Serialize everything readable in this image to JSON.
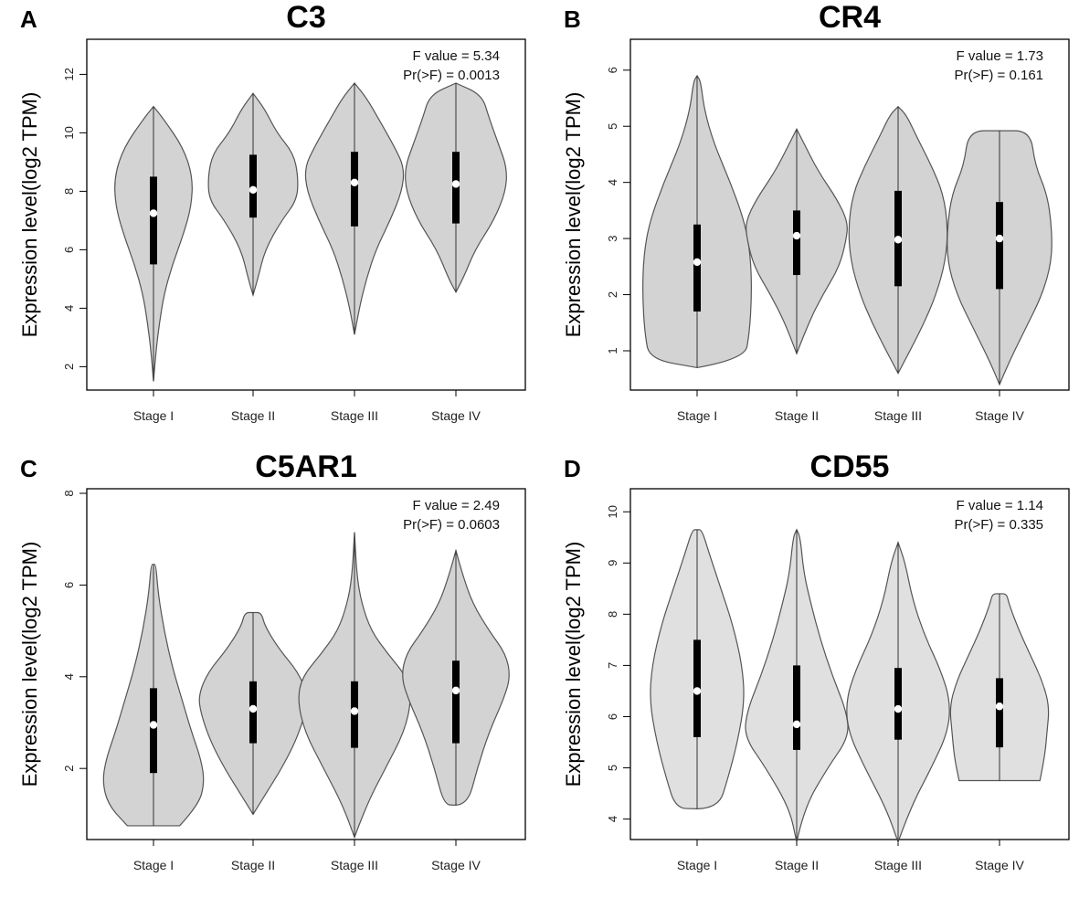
{
  "chart_data": [
    {
      "panel_label": "A",
      "title": "C3",
      "type": "violin",
      "ylabel": "Expression level(log2 TPM)",
      "xlabel": "",
      "ylim": [
        1.2,
        13.2
      ],
      "yticks": [
        2,
        4,
        6,
        8,
        10,
        12
      ],
      "f_value_text": "F value = 5.34",
      "p_value_text": "Pr(>F) = 0.0013",
      "fill": "#d3d3d3",
      "categories": [
        "Stage I",
        "Stage II",
        "Stage III",
        "Stage IV"
      ],
      "violins": [
        {
          "name": "Stage I",
          "min": 1.5,
          "q1": 5.5,
          "median": 7.25,
          "q3": 8.5,
          "max": 10.9,
          "profile": [
            [
              1.5,
              0
            ],
            [
              2.5,
              2
            ],
            [
              3.5,
              5
            ],
            [
              4.5,
              9
            ],
            [
              5.5,
              16
            ],
            [
              6.5,
              25
            ],
            [
              7.5,
              32
            ],
            [
              8.5,
              33
            ],
            [
              9.5,
              25
            ],
            [
              10.5,
              8
            ],
            [
              10.9,
              0
            ]
          ]
        },
        {
          "name": "Stage II",
          "min": 4.45,
          "q1": 7.1,
          "median": 8.05,
          "q3": 9.25,
          "max": 11.35,
          "profile": [
            [
              4.45,
              0
            ],
            [
              5,
              4
            ],
            [
              6,
              10
            ],
            [
              7,
              24
            ],
            [
              7.7,
              37
            ],
            [
              8.5,
              38
            ],
            [
              9.3,
              34
            ],
            [
              10,
              20
            ],
            [
              10.8,
              10
            ],
            [
              11.35,
              0
            ]
          ]
        },
        {
          "name": "Stage III",
          "min": 3.1,
          "q1": 6.8,
          "median": 8.3,
          "q3": 9.35,
          "max": 11.7,
          "profile": [
            [
              3.1,
              0
            ],
            [
              4,
              4
            ],
            [
              5,
              10
            ],
            [
              6,
              18
            ],
            [
              7,
              30
            ],
            [
              8,
              40
            ],
            [
              8.8,
              42
            ],
            [
              9.5,
              34
            ],
            [
              10.5,
              20
            ],
            [
              11.2,
              10
            ],
            [
              11.7,
              0
            ]
          ]
        },
        {
          "name": "Stage IV",
          "min": 4.55,
          "q1": 6.9,
          "median": 8.25,
          "q3": 9.35,
          "max": 11.7,
          "profile": [
            [
              4.55,
              0
            ],
            [
              5,
              6
            ],
            [
              6,
              16
            ],
            [
              7,
              32
            ],
            [
              8,
              42
            ],
            [
              8.8,
              43
            ],
            [
              9.6,
              36
            ],
            [
              10.5,
              28
            ],
            [
              11.3,
              22
            ],
            [
              11.7,
              0
            ]
          ]
        }
      ]
    },
    {
      "panel_label": "B",
      "title": "CR4",
      "type": "violin",
      "ylabel": "Expression level(log2 TPM)",
      "xlabel": "",
      "ylim": [
        0.3,
        6.55
      ],
      "yticks": [
        1,
        2,
        3,
        4,
        5,
        6
      ],
      "f_value_text": "F value = 1.73",
      "p_value_text": "Pr(>F) = 0.161",
      "fill": "#d3d3d3",
      "categories": [
        "Stage I",
        "Stage II",
        "Stage III",
        "Stage IV"
      ],
      "violins": [
        {
          "name": "Stage I",
          "min": 0.7,
          "q1": 1.7,
          "median": 2.58,
          "q3": 3.25,
          "max": 5.9,
          "profile": [
            [
              0.7,
              0
            ],
            [
              0.85,
              40
            ],
            [
              1.3,
              44
            ],
            [
              2,
              46
            ],
            [
              2.7,
              45
            ],
            [
              3.3,
              40
            ],
            [
              4,
              28
            ],
            [
              4.7,
              14
            ],
            [
              5.3,
              6
            ],
            [
              5.8,
              3
            ],
            [
              5.9,
              0
            ]
          ]
        },
        {
          "name": "Stage II",
          "min": 0.95,
          "q1": 2.35,
          "median": 3.05,
          "q3": 3.5,
          "max": 4.95,
          "profile": [
            [
              0.95,
              0
            ],
            [
              1.5,
              10
            ],
            [
              2,
              22
            ],
            [
              2.5,
              36
            ],
            [
              3,
              42
            ],
            [
              3.3,
              43
            ],
            [
              3.7,
              34
            ],
            [
              4.2,
              18
            ],
            [
              4.7,
              6
            ],
            [
              4.95,
              0
            ]
          ]
        },
        {
          "name": "Stage III",
          "min": 0.6,
          "q1": 2.15,
          "median": 2.98,
          "q3": 3.85,
          "max": 5.35,
          "profile": [
            [
              0.6,
              0
            ],
            [
              1,
              10
            ],
            [
              1.5,
              22
            ],
            [
              2,
              32
            ],
            [
              2.6,
              40
            ],
            [
              3.2,
              42
            ],
            [
              3.8,
              38
            ],
            [
              4.3,
              28
            ],
            [
              4.8,
              16
            ],
            [
              5.2,
              7
            ],
            [
              5.35,
              0
            ]
          ]
        },
        {
          "name": "Stage IV",
          "min": 0.4,
          "q1": 2.1,
          "median": 3.0,
          "q3": 3.65,
          "max": 4.92,
          "profile": [
            [
              0.4,
              0
            ],
            [
              0.8,
              8
            ],
            [
              1.4,
              22
            ],
            [
              2,
              36
            ],
            [
              2.6,
              44
            ],
            [
              3.2,
              44
            ],
            [
              3.8,
              40
            ],
            [
              4.3,
              30
            ],
            [
              4.92,
              26
            ],
            [
              4.92,
              0
            ]
          ]
        }
      ]
    },
    {
      "panel_label": "C",
      "title": "C5AR1",
      "type": "violin",
      "ylabel": "Expression level(log2 TPM)",
      "xlabel": "",
      "ylim": [
        0.45,
        8.1
      ],
      "yticks": [
        2,
        4,
        6,
        8
      ],
      "f_value_text": "F value = 2.49",
      "p_value_text": "Pr(>F) = 0.0603",
      "fill": "#d3d3d3",
      "categories": [
        "Stage I",
        "Stage II",
        "Stage III",
        "Stage IV"
      ],
      "violins": [
        {
          "name": "Stage I",
          "min": 0.75,
          "q1": 1.9,
          "median": 2.95,
          "q3": 3.75,
          "max": 6.45,
          "profile": [
            [
              0.75,
              22
            ],
            [
              1.2,
              38
            ],
            [
              1.7,
              43
            ],
            [
              2.2,
              40
            ],
            [
              2.8,
              32
            ],
            [
              3.5,
              24
            ],
            [
              4.2,
              16
            ],
            [
              5,
              9
            ],
            [
              5.8,
              4
            ],
            [
              6.45,
              2
            ],
            [
              6.45,
              0
            ]
          ]
        },
        {
          "name": "Stage II",
          "min": 1.0,
          "q1": 2.55,
          "median": 3.3,
          "q3": 3.9,
          "max": 5.4,
          "profile": [
            [
              1.0,
              0
            ],
            [
              1.5,
              12
            ],
            [
              2,
              24
            ],
            [
              2.6,
              36
            ],
            [
              3.2,
              44
            ],
            [
              3.6,
              46
            ],
            [
              4.1,
              38
            ],
            [
              4.6,
              22
            ],
            [
              5.1,
              10
            ],
            [
              5.4,
              7
            ],
            [
              5.4,
              0
            ]
          ]
        },
        {
          "name": "Stage III",
          "min": 0.5,
          "q1": 2.45,
          "median": 3.25,
          "q3": 3.9,
          "max": 7.15,
          "profile": [
            [
              0.5,
              0
            ],
            [
              1.2,
              10
            ],
            [
              2,
              26
            ],
            [
              2.8,
              42
            ],
            [
              3.5,
              48
            ],
            [
              4,
              44
            ],
            [
              4.5,
              28
            ],
            [
              5,
              14
            ],
            [
              5.6,
              6
            ],
            [
              6.2,
              2
            ],
            [
              7.15,
              0
            ]
          ]
        },
        {
          "name": "Stage IV",
          "min": 1.2,
          "q1": 2.55,
          "median": 3.7,
          "q3": 4.35,
          "max": 6.75,
          "profile": [
            [
              1.2,
              0
            ],
            [
              1.21,
              10
            ],
            [
              2,
              18
            ],
            [
              2.8,
              28
            ],
            [
              3.5,
              40
            ],
            [
              4,
              46
            ],
            [
              4.5,
              42
            ],
            [
              5,
              28
            ],
            [
              5.6,
              14
            ],
            [
              6.2,
              6
            ],
            [
              6.75,
              0
            ]
          ]
        }
      ]
    },
    {
      "panel_label": "D",
      "title": "CD55",
      "type": "violin",
      "ylabel": "Expression level(log2 TPM)",
      "xlabel": "",
      "ylim": [
        3.6,
        10.45
      ],
      "yticks": [
        4,
        5,
        6,
        7,
        8,
        9,
        10
      ],
      "f_value_text": "F value = 1.14",
      "p_value_text": "Pr(>F) = 0.335",
      "fill": "#e0e0e0",
      "categories": [
        "Stage I",
        "Stage II",
        "Stage III",
        "Stage IV"
      ],
      "violins": [
        {
          "name": "Stage I",
          "min": 4.2,
          "q1": 5.6,
          "median": 6.5,
          "q3": 7.5,
          "max": 9.65,
          "profile": [
            [
              4.2,
              0
            ],
            [
              4.21,
              18
            ],
            [
              4.8,
              26
            ],
            [
              5.5,
              34
            ],
            [
              6.3,
              40
            ],
            [
              7,
              38
            ],
            [
              7.8,
              30
            ],
            [
              8.5,
              20
            ],
            [
              9.2,
              10
            ],
            [
              9.65,
              4
            ],
            [
              9.65,
              0
            ]
          ]
        },
        {
          "name": "Stage II",
          "min": 3.55,
          "q1": 5.35,
          "median": 5.85,
          "q3": 7.0,
          "max": 9.65,
          "profile": [
            [
              3.55,
              0
            ],
            [
              4.2,
              6
            ],
            [
              5,
              26
            ],
            [
              5.6,
              44
            ],
            [
              6.1,
              42
            ],
            [
              6.8,
              30
            ],
            [
              7.5,
              20
            ],
            [
              8.2,
              12
            ],
            [
              8.8,
              6
            ],
            [
              9.5,
              3
            ],
            [
              9.65,
              0
            ]
          ]
        },
        {
          "name": "Stage III",
          "min": 3.55,
          "q1": 5.55,
          "median": 6.15,
          "q3": 6.95,
          "max": 9.4,
          "profile": [
            [
              3.55,
              0
            ],
            [
              4.2,
              10
            ],
            [
              5,
              28
            ],
            [
              5.7,
              42
            ],
            [
              6.3,
              44
            ],
            [
              6.9,
              36
            ],
            [
              7.6,
              22
            ],
            [
              8.3,
              12
            ],
            [
              9,
              6
            ],
            [
              9.4,
              0
            ]
          ]
        },
        {
          "name": "Stage IV",
          "min": 4.75,
          "q1": 5.4,
          "median": 6.2,
          "q3": 6.75,
          "max": 8.4,
          "profile": [
            [
              4.75,
              34
            ],
            [
              5.2,
              38
            ],
            [
              5.7,
              40
            ],
            [
              6.2,
              42
            ],
            [
              6.7,
              36
            ],
            [
              7.2,
              26
            ],
            [
              7.7,
              16
            ],
            [
              8.2,
              8
            ],
            [
              8.4,
              6
            ],
            [
              8.4,
              0
            ]
          ]
        }
      ]
    }
  ]
}
